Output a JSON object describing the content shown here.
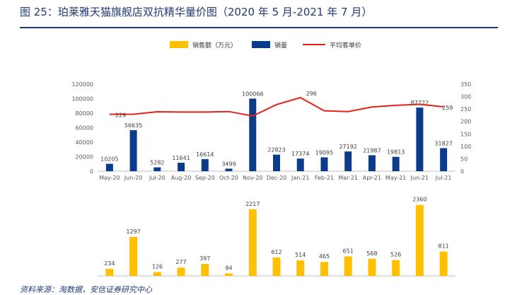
{
  "title": "图 25：珀莱雅天猫旗舰店双抗精华量价图（2020 年 5 月-2021 年 7 月）",
  "source": "资料来源：淘数据，安信证券研究中心",
  "colors": {
    "sales_amount": "#FFC000",
    "sales_volume": "#0B3C8C",
    "avg_price": "#E32219",
    "title": "#1f3a76"
  },
  "chart_data": {
    "type": "bar",
    "categories": [
      "May-20",
      "Jun-20",
      "Jul-20",
      "Aug-20",
      "Sep-20",
      "Oct-20",
      "Nov-20",
      "Dec-20",
      "Jan-21",
      "Feb-21",
      "Mar-21",
      "Apr-21",
      "May-21",
      "Jun-21",
      "Jul-21"
    ],
    "legend": [
      "销售额（万元）",
      "销量",
      "平均客单价"
    ],
    "series": [
      {
        "name": "销售额（万元）",
        "type": "bar",
        "values": [
          234,
          1297,
          126,
          277,
          397,
          84,
          2217,
          612,
          514,
          465,
          651,
          568,
          526,
          2360,
          811
        ]
      },
      {
        "name": "销量",
        "type": "bar",
        "axis": "left",
        "values": [
          10205,
          56635,
          5282,
          11641,
          16614,
          3499,
          100066,
          22823,
          17374,
          19095,
          27192,
          21987,
          19813,
          87722,
          31827
        ]
      },
      {
        "name": "平均客单价",
        "type": "line",
        "axis": "right",
        "values": [
          229,
          229,
          239,
          238,
          238,
          240,
          222,
          268,
          296,
          243,
          240,
          258,
          265,
          269,
          259
        ],
        "labeled": [
          "229",
          "296",
          "259"
        ]
      }
    ],
    "left_axis": {
      "ylim": [
        0,
        120000
      ],
      "ticks": [
        "0",
        "20000",
        "40000",
        "60000",
        "80000",
        "100000",
        "120000"
      ]
    },
    "right_axis": {
      "ylim": [
        0,
        350
      ],
      "ticks": [
        "0",
        "50",
        "100",
        "150",
        "200",
        "250",
        "300",
        "350"
      ]
    },
    "bottom_ylim": [
      0,
      2400
    ]
  }
}
